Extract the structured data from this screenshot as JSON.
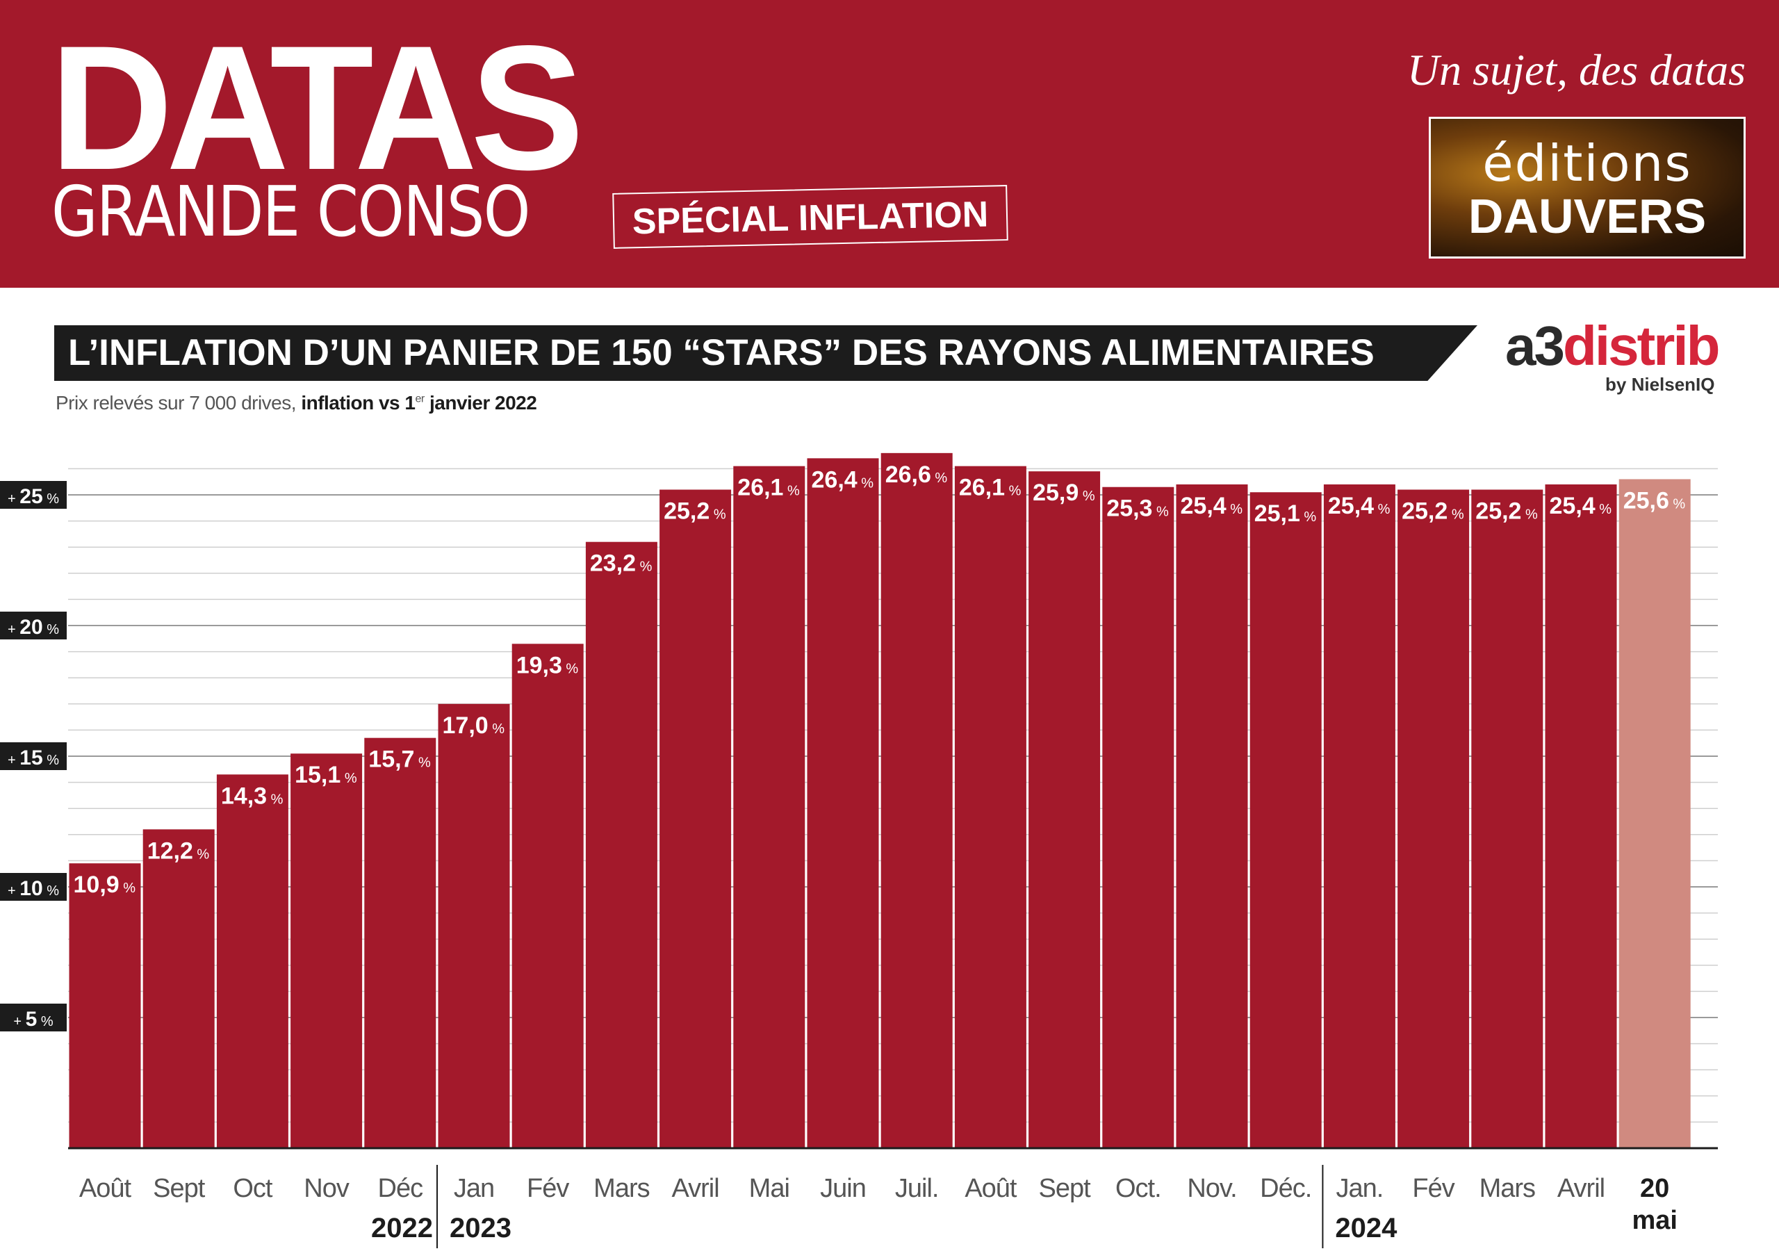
{
  "header": {
    "brand_main": "DATAS",
    "brand_sub": "GRANDE CONSO",
    "special_label": "SPÉCIAL INFLATION",
    "tagline": "Un sujet, des datas",
    "logo_line1": "éditions",
    "logo_line2": "DAUVERS"
  },
  "partner_logo": {
    "part1": "a3",
    "part2": "distrib",
    "byline": "by NielsenIQ"
  },
  "subtitle": {
    "text_plain": "Prix relevés sur 7 000 drives, ",
    "text_bold": "inflation vs 1",
    "text_sup": "er",
    "text_bold_end": " janvier 2022"
  },
  "colors": {
    "header_bg": "#a3192b",
    "bar": "#a3192b",
    "bar_highlight": "#d08a80",
    "title_bg": "#1c1c1c"
  },
  "chart_data": {
    "type": "bar",
    "title": "L’INFLATION D’UN PANIER DE 150 “STARS” DES RAYONS ALIMENTAIRES",
    "categories": [
      "Août",
      "Sept",
      "Oct",
      "Nov",
      "Déc",
      "Jan",
      "Fév",
      "Mars",
      "Avril",
      "Mai",
      "Juin",
      "Juil.",
      "Août",
      "Sept",
      "Oct.",
      "Nov.",
      "Déc.",
      "Jan.",
      "Fév",
      "Mars",
      "Avril",
      "20 mai"
    ],
    "values": [
      10.9,
      12.2,
      14.3,
      15.1,
      15.7,
      17.0,
      19.3,
      23.2,
      25.2,
      26.1,
      26.4,
      26.6,
      26.1,
      25.9,
      25.3,
      25.4,
      25.1,
      25.4,
      25.2,
      25.2,
      25.4,
      25.6
    ],
    "value_labels": [
      "10,9",
      "12,2",
      "14,3",
      "15,1",
      "15,7",
      "17,0",
      "19,3",
      "23,2",
      "25,2",
      "26,1",
      "26,4",
      "26,6",
      "26,1",
      "25,9",
      "25,3",
      "25,4",
      "25,1",
      "25,4",
      "25,2",
      "25,2",
      "25,4",
      "25,6"
    ],
    "value_unit": "%",
    "year_labels": [
      {
        "year": "2022",
        "index": 4
      },
      {
        "year": "2023",
        "index": 5
      },
      {
        "year": "2024",
        "index": 17
      }
    ],
    "y_ticks": [
      5,
      10,
      15,
      20,
      25
    ],
    "y_tick_prefix": "+",
    "y_tick_unit": "%",
    "ylim": [
      0,
      26.6
    ],
    "highlight_last": true
  }
}
